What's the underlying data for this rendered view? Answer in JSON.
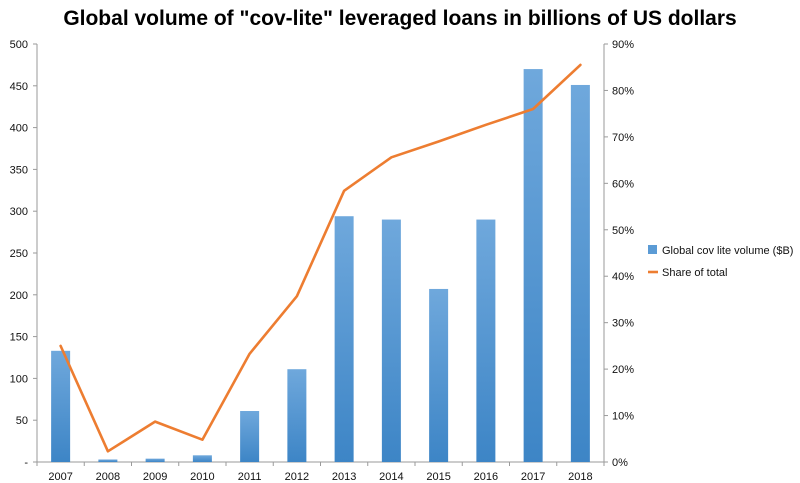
{
  "chart_data": {
    "type": "bar",
    "title": "Global volume of \"cov-lite\" leveraged loans in billions of US dollars",
    "categories": [
      "2007",
      "2008",
      "2009",
      "2010",
      "2011",
      "2012",
      "2013",
      "2014",
      "2015",
      "2016",
      "2017",
      "2018"
    ],
    "series": [
      {
        "name": "Global cov lite volume ($B)",
        "type": "bar",
        "axis": "left",
        "color": "#5b9bd5",
        "values": [
          133,
          3,
          4,
          8,
          61,
          111,
          294,
          290,
          207,
          290,
          470,
          451
        ]
      },
      {
        "name": "Share of total",
        "type": "line",
        "axis": "right",
        "color": "#ed7d31",
        "values": [
          25,
          2.3,
          8.7,
          4.8,
          23.3,
          35.7,
          58.4,
          65.6,
          69,
          72.6,
          76,
          85.5
        ]
      }
    ],
    "y_left": {
      "min": 0,
      "max": 500,
      "step": 50,
      "ticks": [
        "-",
        "50",
        "100",
        "150",
        "200",
        "250",
        "300",
        "350",
        "400",
        "450",
        "500"
      ]
    },
    "y_right": {
      "min": 0,
      "max": 90,
      "step": 10,
      "ticks": [
        "0%",
        "10%",
        "20%",
        "30%",
        "40%",
        "50%",
        "60%",
        "70%",
        "80%",
        "90%"
      ]
    },
    "grid": false,
    "legend_position": "right"
  }
}
